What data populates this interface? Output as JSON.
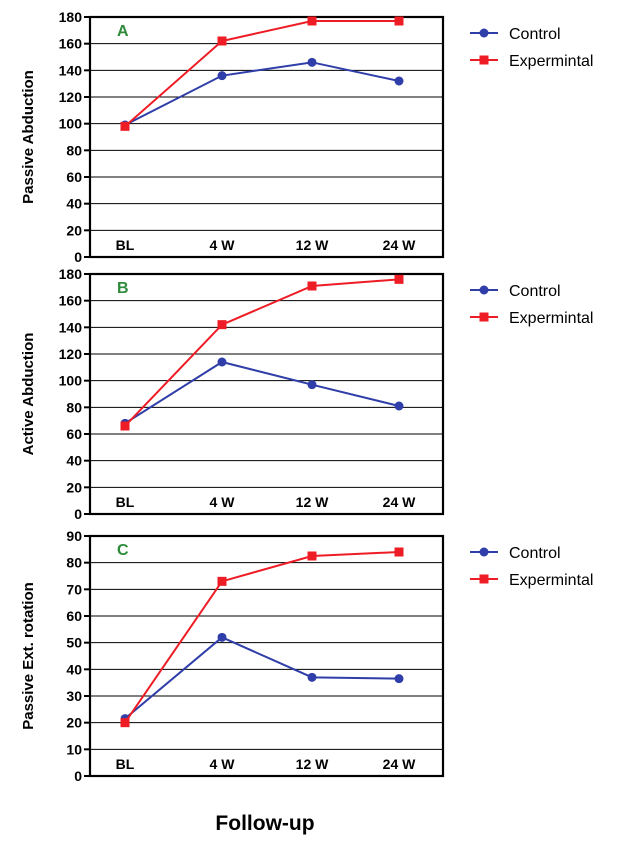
{
  "figure": {
    "xlabel": "Follow-up",
    "colors": {
      "control": "#2f3ea8",
      "experimental": "#ee1c25",
      "panel_letter": "#2e8b3a",
      "grid": "#000000"
    }
  },
  "chart_data": [
    {
      "type": "line",
      "panel_label": "A",
      "ylabel": "Passive Abduction",
      "categories": [
        "BL",
        "4 W",
        "12 W",
        "24 W"
      ],
      "ylim": [
        0,
        180
      ],
      "yticks": [
        0,
        20,
        40,
        60,
        80,
        100,
        120,
        140,
        160,
        180
      ],
      "grid": true,
      "legend_position": "right",
      "series": [
        {
          "name": "Control",
          "values": [
            99,
            136,
            146,
            132
          ]
        },
        {
          "name": "Expermintal",
          "values": [
            98,
            162,
            177,
            177
          ]
        }
      ]
    },
    {
      "type": "line",
      "panel_label": "B",
      "ylabel": "Active Abduction",
      "categories": [
        "BL",
        "4 W",
        "12 W",
        "24 W"
      ],
      "ylim": [
        0,
        180
      ],
      "yticks": [
        0,
        20,
        40,
        60,
        80,
        100,
        120,
        140,
        160,
        180
      ],
      "grid": true,
      "legend_position": "right",
      "series": [
        {
          "name": "Control",
          "values": [
            68,
            114,
            97,
            81
          ]
        },
        {
          "name": "Expermintal",
          "values": [
            66,
            142,
            171,
            176
          ]
        }
      ]
    },
    {
      "type": "line",
      "panel_label": "C",
      "ylabel": "Passive Ext. rotation",
      "categories": [
        "BL",
        "4 W",
        "12 W",
        "24 W"
      ],
      "ylim": [
        0,
        90
      ],
      "yticks": [
        0,
        10,
        20,
        30,
        40,
        50,
        60,
        70,
        80,
        90
      ],
      "grid": true,
      "legend_position": "right",
      "series": [
        {
          "name": "Control",
          "values": [
            21.5,
            52,
            37,
            36.5
          ]
        },
        {
          "name": "Expermintal",
          "values": [
            20,
            73,
            82.5,
            84
          ]
        }
      ]
    }
  ]
}
